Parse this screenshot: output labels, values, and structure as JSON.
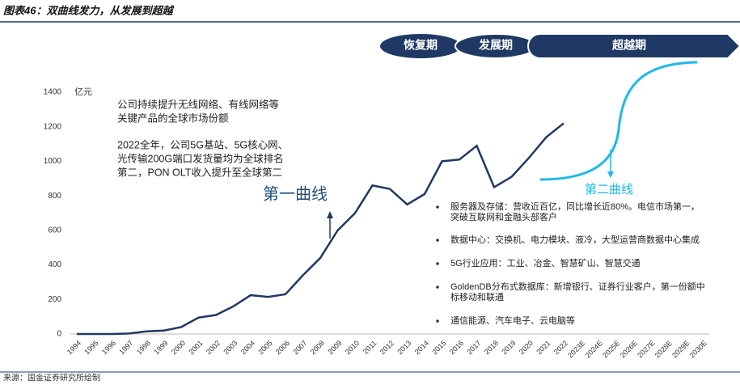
{
  "header": {
    "title": "图表46：双曲线发力，从发展到超越"
  },
  "footer": {
    "source": "来源：国金证券研究所绘制"
  },
  "phases": [
    "恢复期",
    "发展期",
    "超越期"
  ],
  "chart_data": {
    "type": "line",
    "y_unit": "亿元",
    "categories": [
      "1994",
      "1995",
      "1996",
      "1997",
      "1998",
      "1999",
      "2000",
      "2001",
      "2002",
      "2003",
      "2004",
      "2005",
      "2006",
      "2007",
      "2008",
      "2009",
      "2010",
      "2011",
      "2012",
      "2013",
      "2014",
      "2015",
      "2016",
      "2017",
      "2018",
      "2019",
      "2020",
      "2021",
      "2022",
      "2023E",
      "2024E",
      "2025E",
      "2026E",
      "2027E",
      "2028E",
      "2029E",
      "2030E"
    ],
    "series": [
      {
        "name": "第一曲线",
        "color": "#1f3864",
        "values": [
          0,
          0,
          0,
          3,
          15,
          20,
          40,
          95,
          110,
          160,
          225,
          215,
          230,
          340,
          440,
          600,
          700,
          860,
          840,
          750,
          810,
          1000,
          1010,
          1090,
          850,
          910,
          1020,
          1140,
          1220,
          null,
          null,
          null,
          null,
          null,
          null,
          null,
          null
        ]
      }
    ],
    "second_curve_label": "第二曲线",
    "ylim": [
      0,
      1400
    ],
    "yticks": [
      0,
      200,
      400,
      600,
      800,
      1000,
      1200,
      1400
    ],
    "annotations": [
      [
        "公司持续提升无线网络、有线网络等",
        "关键产品的全球市场份额"
      ],
      [
        "2022全年，公司5G基站、5G核心网、",
        "光传输200G端口发货量均为全球排名",
        "第二，PON OLT收入提升至全球第二"
      ]
    ],
    "bullets": [
      [
        "服务器及存储：营收近百亿，同比增长近80%。电信市场第一，",
        "突破互联网和金融头部客户"
      ],
      [
        "数据中心：交换机、电力模块、液冷，大型运营商数据中心集成"
      ],
      [
        "5G行业应用：工业、冶金、智慧矿山、智慧交通"
      ],
      [
        "GoldenDB分布式数据库：新增银行、证券行业客户，第一份额中",
        "标移动和联通"
      ],
      [
        "通信能源、汽车电子、云电脑等"
      ]
    ]
  }
}
